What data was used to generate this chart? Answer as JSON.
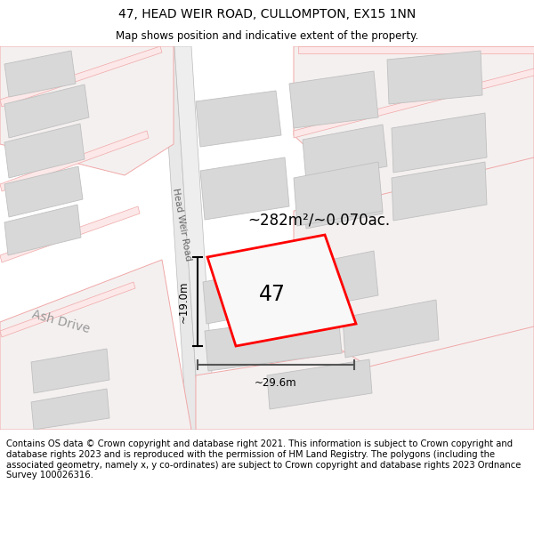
{
  "title": "47, HEAD WEIR ROAD, CULLOMPTON, EX15 1NN",
  "subtitle": "Map shows position and indicative extent of the property.",
  "footer": "Contains OS data © Crown copyright and database right 2021. This information is subject to Crown copyright and database rights 2023 and is reproduced with the permission of HM Land Registry. The polygons (including the associated geometry, namely x, y co-ordinates) are subject to Crown copyright and database rights 2023 Ordnance Survey 100026316.",
  "area_label": "~282m²/~0.070ac.",
  "number_label": "47",
  "dim_width": "~29.6m",
  "dim_height": "~19.0m",
  "road_label": "Head Weir Road",
  "street_label": "Ash Drive",
  "title_fontsize": 10,
  "subtitle_fontsize": 8.5,
  "footer_fontsize": 7.2,
  "pink": "#f0a8a8",
  "pink_light": "#fce8e8",
  "gray_bld": "#d8d8d8",
  "gray_bld_edge": "#c0c0c0",
  "road_gray": "#e0dede",
  "dim_color": "#333333",
  "road_label_color": "#666666",
  "street_label_color": "#999999"
}
